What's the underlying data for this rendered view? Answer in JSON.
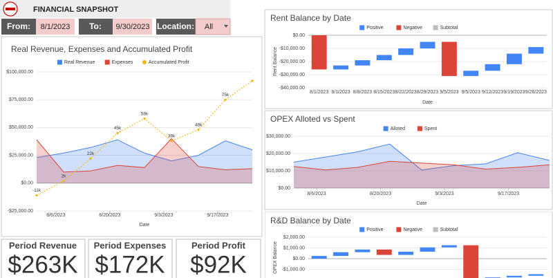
{
  "header": {
    "title": "FINANCIAL SNAPSHOT"
  },
  "filters": [
    {
      "label": "From:",
      "value": "8/1/2023"
    },
    {
      "label": "To:",
      "value": "9/30/2023"
    },
    {
      "label": "Location:",
      "value": "All"
    }
  ],
  "kpis": [
    {
      "title": "Period Revenue",
      "value": "$263K",
      "color": "#6aa84f"
    },
    {
      "title": "Period Expenses",
      "value": "$172K",
      "color": "#e06666"
    },
    {
      "title": "Period Profit",
      "value": "$92K",
      "color": "#999999"
    }
  ],
  "chart_data": [
    {
      "type": "area",
      "title": "Real Revenue, Expenses and Accumulated Profit",
      "x_label": "Date",
      "x": [
        "2023-08-01",
        "2023-08-08",
        "2023-08-15",
        "2023-08-22",
        "2023-08-29",
        "2023-09-05",
        "2023-09-12",
        "2023-09-19",
        "2023-09-26"
      ],
      "xlim": [
        "2023-08-01",
        "2023-09-26"
      ],
      "xticks": [
        {
          "value": "2023-08-06",
          "label": "8/6/2023"
        },
        {
          "value": "2023-08-20",
          "label": "8/20/2023"
        },
        {
          "value": "2023-09-03",
          "label": "9/3/2023"
        },
        {
          "value": "2023-09-17",
          "label": "9/17/2023"
        }
      ],
      "ylim": [
        -25000,
        100000
      ],
      "yticks": [
        {
          "value": -25000,
          "label": "-$25,000.00"
        },
        {
          "value": 0,
          "label": "$0.00"
        },
        {
          "value": 25000,
          "label": "$25,000.00"
        },
        {
          "value": 50000,
          "label": "$50,000.00"
        },
        {
          "value": 75000,
          "label": "$75,000.00"
        },
        {
          "value": 100000,
          "label": "$100,000.00"
        }
      ],
      "grid": true,
      "series": [
        {
          "name": "Real Revenue",
          "color": "#4285f4",
          "values": [
            23000,
            27000,
            32000,
            39000,
            27000,
            20000,
            25000,
            38000,
            30000
          ]
        },
        {
          "name": "Expenses",
          "color": "#db4437",
          "values": [
            39000,
            10000,
            11000,
            16000,
            14000,
            40000,
            15000,
            12000,
            13000
          ]
        },
        {
          "name": "Accumulated Profit",
          "color": "#f4b400",
          "type": "line",
          "values": [
            -11000,
            2000,
            22000,
            45000,
            58000,
            38000,
            48000,
            75000,
            92000
          ],
          "value_labels": [
            "-11k",
            "2k",
            "22k",
            "45k",
            "58k",
            "38k",
            "48k",
            "75k",
            null
          ]
        }
      ]
    },
    {
      "type": "waterfall",
      "title": "Rent Balance by Date",
      "x_label": "Date",
      "y_label": "Rent Balance",
      "legend": [
        {
          "name": "Positive",
          "color": "#4285f4"
        },
        {
          "name": "Negative",
          "color": "#db4437"
        },
        {
          "name": "Subtotal",
          "color": "#bdbdbd"
        }
      ],
      "categories": [
        "8/1/2023",
        "8/1/2023",
        "8/8/2023",
        "8/15/2023",
        "8/22/2023",
        "8/29/2023",
        "9/5/2023",
        "9/5/2023",
        "9/12/2023",
        "9/19/2023",
        "9/26/2023"
      ],
      "values": [
        -26000,
        3000,
        4000,
        4000,
        5000,
        5000,
        -26000,
        4000,
        5000,
        8000,
        5000
      ],
      "ylim": [
        -40000,
        0
      ],
      "yticks": [
        {
          "value": -40000,
          "label": "-$40,000.00"
        },
        {
          "value": -30000,
          "label": "-$30,000.00"
        },
        {
          "value": -20000,
          "label": "-$20,000.00"
        },
        {
          "value": -10000,
          "label": "-$10,000.00"
        },
        {
          "value": 0,
          "label": "$0.00"
        }
      ],
      "grid": true
    },
    {
      "type": "area",
      "title": "OPEX Alloted vs Spent",
      "x_label": "Date",
      "x": [
        "2023-08-01",
        "2023-08-08",
        "2023-08-15",
        "2023-08-22",
        "2023-08-29",
        "2023-09-05",
        "2023-09-12",
        "2023-09-19",
        "2023-09-26"
      ],
      "xlim": [
        "2023-08-01",
        "2023-09-26"
      ],
      "xticks": [
        {
          "value": "2023-08-06",
          "label": "8/6/2023"
        },
        {
          "value": "2023-08-20",
          "label": "8/20/2023"
        },
        {
          "value": "2023-09-03",
          "label": "9/3/2023"
        },
        {
          "value": "2023-09-17",
          "label": "9/17/2023"
        }
      ],
      "ylim": [
        0,
        30000
      ],
      "yticks": [
        {
          "value": 0,
          "label": "$0.00"
        },
        {
          "value": 10000,
          "label": "$10,000.00"
        },
        {
          "value": 20000,
          "label": "$20,000.00"
        },
        {
          "value": 30000,
          "label": "$30,000.00"
        }
      ],
      "grid": true,
      "series": [
        {
          "name": "Alloted",
          "color": "#4285f4",
          "values": [
            15000,
            18000,
            21000,
            25500,
            10500,
            13000,
            14000,
            20500,
            16000
          ]
        },
        {
          "name": "Spent",
          "color": "#db4437",
          "values": [
            12500,
            10500,
            12000,
            15500,
            14500,
            13500,
            11000,
            12000,
            13500
          ]
        }
      ]
    },
    {
      "type": "waterfall",
      "title": "R&D Balance by Date",
      "y_label": "OPEX Balance",
      "legend": [
        {
          "name": "Positive",
          "color": "#4285f4"
        },
        {
          "name": "Negative",
          "color": "#db4437"
        },
        {
          "name": "Subtotal",
          "color": "#bdbdbd"
        }
      ],
      "categories": [
        null,
        null,
        null,
        null,
        null,
        null,
        null,
        null,
        null,
        null,
        null
      ],
      "values": [
        250,
        350,
        250,
        -500,
        300,
        400,
        200,
        -3100,
        100,
        150,
        150
      ],
      "ylim": [
        -2000,
        2000
      ],
      "yticks": [
        {
          "value": -1000,
          "label": "-$1,000.00"
        },
        {
          "value": 0,
          "label": "$0.00"
        },
        {
          "value": 1000,
          "label": "$1,000.00"
        },
        {
          "value": 2000,
          "label": "$2,000.00"
        }
      ],
      "grid": true
    }
  ]
}
